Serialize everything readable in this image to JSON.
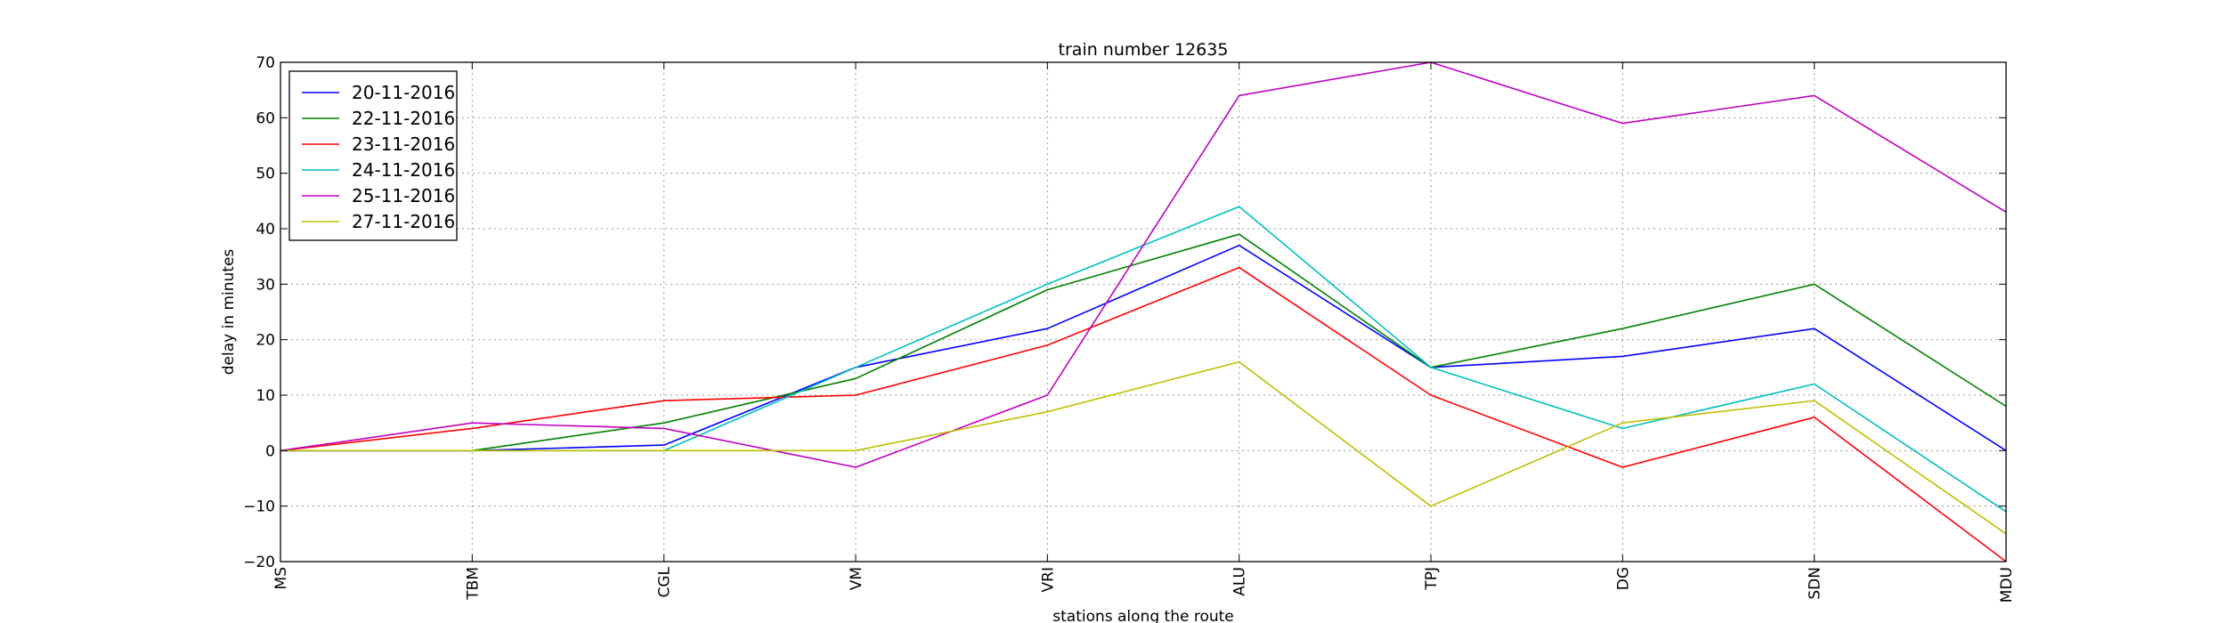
{
  "chart_data": {
    "type": "line",
    "title": "train number 12635",
    "xlabel": "stations along the route",
    "ylabel": "delay in minutes",
    "categories": [
      "MS",
      "TBM",
      "CGL",
      "VM",
      "VRI",
      "ALU",
      "TPJ",
      "DG",
      "SDN",
      "MDU"
    ],
    "ylim": [
      -20,
      70
    ],
    "yticks": [
      -20,
      -10,
      0,
      10,
      20,
      30,
      40,
      50,
      60,
      70
    ],
    "grid": true,
    "legend_position": "top-left",
    "series": [
      {
        "name": "20-11-2016",
        "color": "#0000ff",
        "values": [
          0,
          0,
          1,
          15,
          22,
          37,
          15,
          17,
          22,
          0
        ]
      },
      {
        "name": "22-11-2016",
        "color": "#008000",
        "values": [
          0,
          0,
          5,
          13,
          29,
          39,
          15,
          22,
          30,
          8
        ]
      },
      {
        "name": "23-11-2016",
        "color": "#ff0000",
        "values": [
          0,
          4,
          9,
          10,
          19,
          33,
          10,
          -3,
          6,
          -20
        ]
      },
      {
        "name": "24-11-2016",
        "color": "#00bfbf",
        "values": [
          0,
          0,
          0,
          15,
          30,
          44,
          15,
          4,
          12,
          -11
        ]
      },
      {
        "name": "25-11-2016",
        "color": "#bf00bf",
        "values": [
          0,
          5,
          4,
          -3,
          10,
          64,
          70,
          59,
          64,
          43
        ]
      },
      {
        "name": "27-11-2016",
        "color": "#bfbf00",
        "values": [
          0,
          0,
          0,
          0,
          7,
          16,
          -10,
          5,
          9,
          -15
        ]
      }
    ]
  }
}
